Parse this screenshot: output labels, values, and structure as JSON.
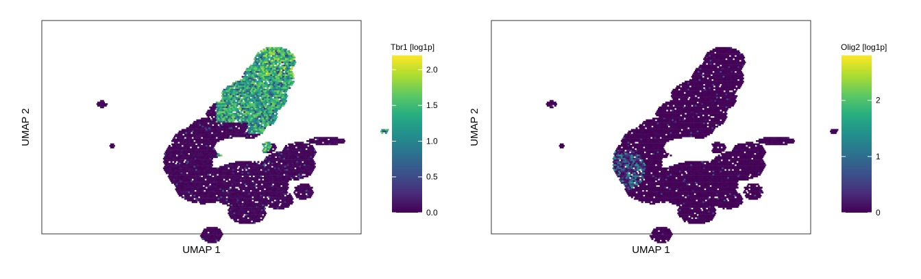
{
  "chart_data": [
    {
      "type": "hexbin-embedding",
      "xlabel": "UMAP 1",
      "ylabel": "UMAP 2",
      "colorbar": {
        "title": "Tbr1 [log1p]",
        "range": [
          0,
          2.2
        ],
        "ticks": [
          0.0,
          0.5,
          1.0,
          1.5,
          2.0
        ],
        "tick_labels": [
          "0.0",
          "0.5",
          "1.0",
          "1.5",
          "2.0"
        ],
        "colormap": "viridis"
      },
      "grid": false,
      "legend_position": "right",
      "expression_pattern": "high in upper diagonal lobe, low elsewhere"
    },
    {
      "type": "hexbin-embedding",
      "xlabel": "UMAP 1",
      "ylabel": "UMAP 2",
      "colorbar": {
        "title": "Olig2 [log1p]",
        "range": [
          0,
          2.8
        ],
        "ticks": [
          0,
          1,
          2
        ],
        "tick_labels": [
          "0",
          "1",
          "2"
        ],
        "colormap": "viridis"
      },
      "grid": false,
      "legend_position": "right",
      "expression_pattern": "mostly low, moderate in central-left lower region"
    }
  ]
}
